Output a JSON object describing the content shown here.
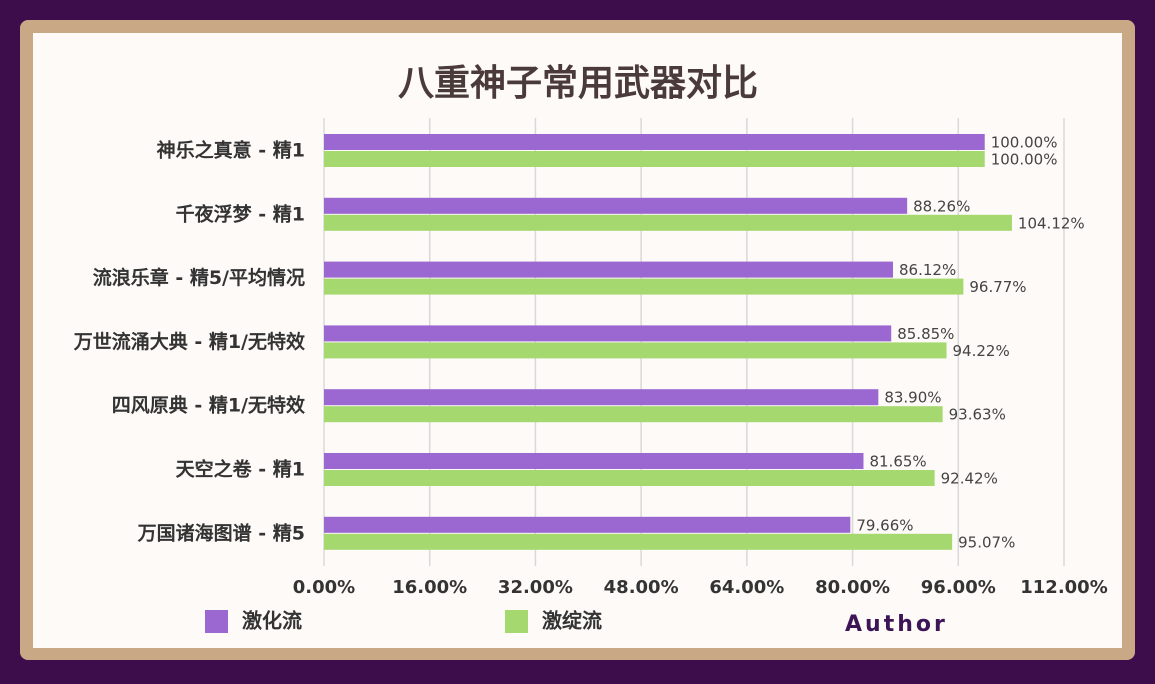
{
  "chart_data": {
    "type": "bar",
    "orientation": "horizontal",
    "title": "八重神子常用武器对比",
    "categories": [
      "神乐之真意 - 精1",
      "千夜浮梦 - 精1",
      "流浪乐章 - 精5/平均情况",
      "万世流涌大典 - 精1/无特效",
      "四风原典 - 精1/无特效",
      "天空之卷 - 精1",
      "万国诸海图谱 - 精5"
    ],
    "series": [
      {
        "name": "激化流",
        "color": "#9b67d1",
        "values": [
          100.0,
          88.26,
          86.12,
          85.85,
          83.9,
          81.65,
          79.66
        ],
        "value_labels": [
          "100.00%",
          "88.26%",
          "86.12%",
          "85.85%",
          "83.90%",
          "81.65%",
          "79.66%"
        ]
      },
      {
        "name": "激绽流",
        "color": "#a5d86e",
        "values": [
          100.0,
          104.12,
          96.77,
          94.22,
          93.63,
          92.42,
          95.07
        ],
        "value_labels": [
          "100.00%",
          "104.12%",
          "96.77%",
          "94.22%",
          "93.63%",
          "92.42%",
          "95.07%"
        ]
      }
    ],
    "xlim": [
      0,
      112
    ],
    "xticks": [
      {
        "value": 0,
        "label": "0.00%"
      },
      {
        "value": 16,
        "label": "16.00%"
      },
      {
        "value": 32,
        "label": "32.00%"
      },
      {
        "value": 48,
        "label": "48.00%"
      },
      {
        "value": 64,
        "label": "64.00%"
      },
      {
        "value": 80,
        "label": "80.00%"
      },
      {
        "value": 96,
        "label": "96.00%"
      },
      {
        "value": 112,
        "label": "112.00%"
      }
    ],
    "grid": true,
    "annotation": "Author"
  }
}
